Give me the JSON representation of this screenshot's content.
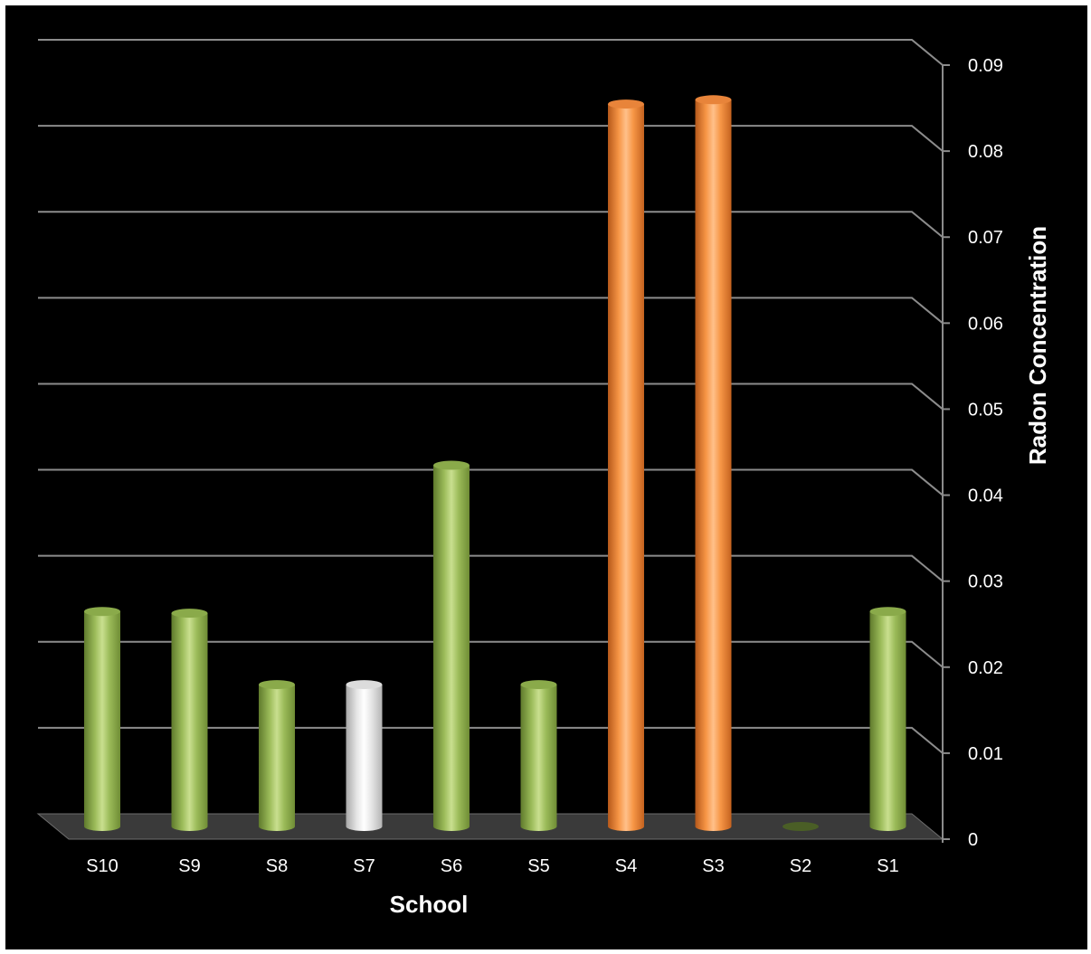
{
  "chart_data": {
    "type": "bar",
    "style": "3d-cylinder",
    "categories": [
      "S10",
      "S9",
      "S8",
      "S7",
      "S6",
      "S5",
      "S4",
      "S3",
      "S2",
      "S1"
    ],
    "values": [
      0.025,
      0.0248,
      0.0165,
      0.0165,
      0.042,
      0.0165,
      0.084,
      0.0845,
      0.0,
      0.025
    ],
    "bar_colors": [
      "green",
      "green",
      "green",
      "white",
      "green",
      "green",
      "orange",
      "orange",
      "green",
      "green"
    ],
    "palette": {
      "green": "#9BBB59",
      "white": "#F2F2F2",
      "orange": "#F79646",
      "background": "#000000",
      "grid": "#8C8C8C"
    },
    "xlabel": "School",
    "ylabel": "Radon Concentration",
    "ylim": [
      0,
      0.09
    ],
    "yticks": [
      "0",
      "0.01",
      "0.02",
      "0.03",
      "0.04",
      "0.05",
      "0.06",
      "0.07",
      "0.08",
      "0.09"
    ],
    "grid": true,
    "y_axis_side": "right",
    "legend": "none"
  }
}
